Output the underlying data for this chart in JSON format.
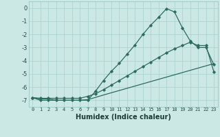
{
  "xlabel": "Humidex (Indice chaleur)",
  "bg_color": "#cce8e4",
  "grid_color": "#aed4d0",
  "line_color": "#2a6b60",
  "x_values": [
    0,
    1,
    2,
    3,
    4,
    5,
    6,
    7,
    8,
    9,
    10,
    11,
    12,
    13,
    14,
    15,
    16,
    17,
    18,
    19,
    20,
    21,
    22,
    23
  ],
  "line1_y": [
    -6.8,
    -7.0,
    -7.0,
    -7.0,
    -7.0,
    -7.0,
    -7.0,
    -7.0,
    -6.3,
    -5.5,
    -4.8,
    -4.2,
    -3.5,
    -2.8,
    -2.0,
    -1.3,
    -0.7,
    -0.05,
    -0.3,
    -1.5,
    -2.5,
    -3.0,
    -3.0,
    -4.3
  ],
  "line2_y": [
    -6.8,
    -6.85,
    -6.85,
    -6.85,
    -6.85,
    -6.85,
    -6.85,
    -6.7,
    -6.5,
    -6.2,
    -5.85,
    -5.5,
    -5.15,
    -4.8,
    -4.45,
    -4.1,
    -3.75,
    -3.4,
    -3.1,
    -2.85,
    -2.6,
    -2.85,
    -2.85,
    -4.85
  ],
  "line3_y": [
    -6.8,
    -6.9,
    -6.9,
    -7.0,
    -7.0,
    -7.0,
    -7.0,
    -6.95,
    -6.78,
    -6.6,
    -6.43,
    -6.26,
    -6.09,
    -5.92,
    -5.75,
    -5.58,
    -5.41,
    -5.24,
    -5.07,
    -4.9,
    -4.73,
    -4.56,
    -4.39,
    -4.22
  ],
  "ylim": [
    -7.5,
    0.5
  ],
  "xlim": [
    -0.5,
    23.5
  ],
  "yticks": [
    0,
    -1,
    -2,
    -3,
    -4,
    -5,
    -6,
    -7
  ],
  "xticks": [
    0,
    1,
    2,
    3,
    4,
    5,
    6,
    7,
    8,
    9,
    10,
    11,
    12,
    13,
    14,
    15,
    16,
    17,
    18,
    19,
    20,
    21,
    22,
    23
  ],
  "markersize": 2.5,
  "linewidth": 0.9,
  "ytick_fontsize": 6.0,
  "xtick_fontsize": 5.0,
  "xlabel_fontsize": 7.0
}
